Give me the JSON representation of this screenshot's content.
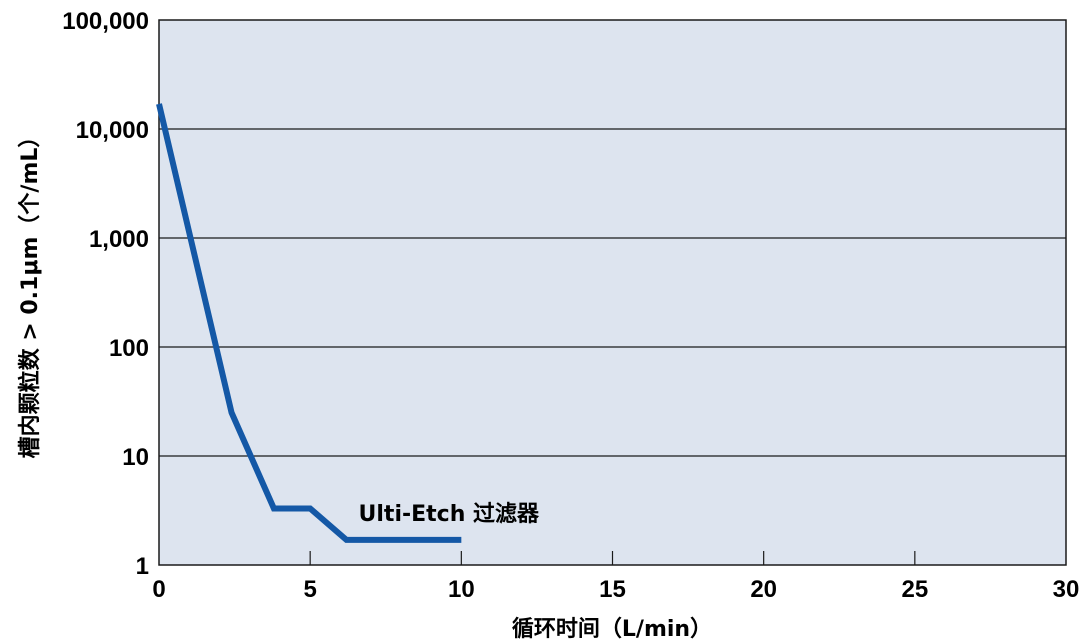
{
  "chart_data": {
    "type": "line",
    "xlabel": "循环时间（L/min）",
    "ylabel": "槽内颗粒数 > 0.1μm（个/mL）",
    "x_scale": "linear",
    "y_scale": "log",
    "xlim": [
      0,
      30
    ],
    "ylim": [
      1,
      100000
    ],
    "x_ticks": [
      0,
      5,
      10,
      15,
      20,
      25,
      30
    ],
    "x_tick_labels": [
      "0",
      "5",
      "10",
      "15",
      "20",
      "25",
      "30"
    ],
    "y_ticks": [
      1,
      10,
      100,
      1000,
      10000,
      100000
    ],
    "y_tick_labels": [
      "1",
      "10",
      "100",
      "1,000",
      "10,000",
      "100,000"
    ],
    "grid": "horizontal",
    "series": [
      {
        "name": "Ulti-Etch 过滤器",
        "color": "#1458a6",
        "x": [
          0,
          2.4,
          3.8,
          5.0,
          6.2,
          10.0
        ],
        "y": [
          17000,
          25,
          3.3,
          3.3,
          1.7,
          1.7
        ]
      }
    ],
    "annotation": {
      "text": "Ulti-Etch 过滤器",
      "x": 6.6,
      "y": 3.0
    },
    "colors": {
      "plot_background": "#dde4ef",
      "line": "#1458a6",
      "grid": "#1a1a1a"
    }
  }
}
